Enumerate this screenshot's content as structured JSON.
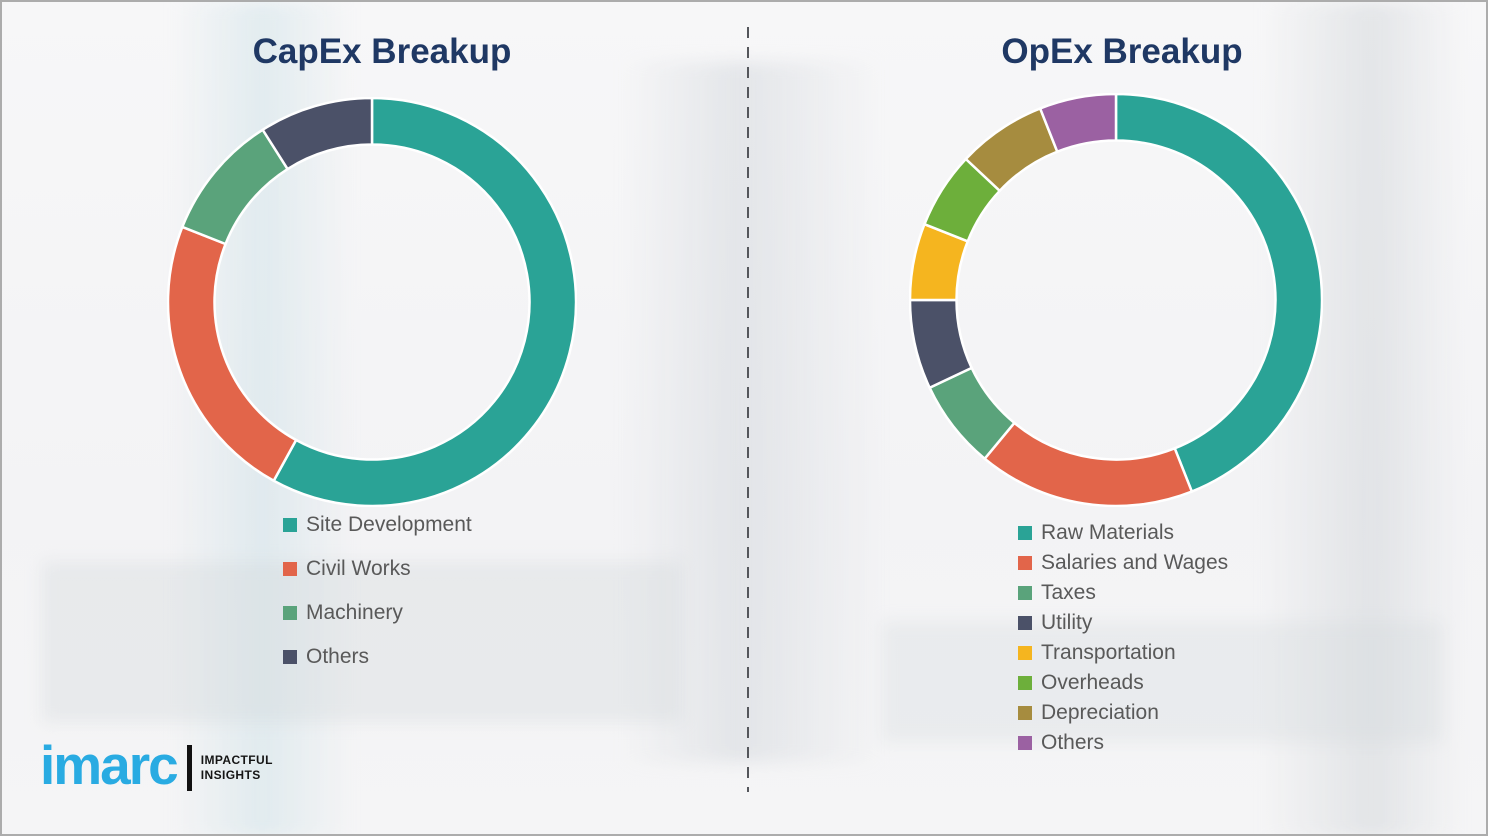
{
  "page": {
    "background_color": "#f4f4f6",
    "border_color": "#acacac",
    "divider_color": "#54565b",
    "title_color": "#1f3864",
    "legend_text_color": "#595959"
  },
  "chart_data": [
    {
      "type": "pie",
      "donut": true,
      "title": "CapEx Breakup",
      "labels": [
        "Site Development",
        "Civil Works",
        "Machinery",
        "Others"
      ],
      "values": [
        58,
        23,
        10,
        9
      ],
      "colors": [
        "#2aa396",
        "#e2654a",
        "#5aa37b",
        "#4b5168"
      ],
      "start_angle_deg": 0,
      "direction": "clockwise",
      "legend_position": "below-left"
    },
    {
      "type": "pie",
      "donut": true,
      "title": "OpEx Breakup",
      "labels": [
        "Raw Materials",
        "Salaries and Wages",
        "Taxes",
        "Utility",
        "Transportation",
        "Overheads",
        "Depreciation",
        "Others"
      ],
      "values": [
        44,
        17,
        7,
        7,
        6,
        6,
        7,
        6
      ],
      "colors": [
        "#2aa396",
        "#e2654a",
        "#5aa37b",
        "#4b5168",
        "#f5b51f",
        "#6daf3b",
        "#a68c3f",
        "#9b61a2"
      ],
      "start_angle_deg": 0,
      "direction": "clockwise",
      "legend_position": "below-left"
    }
  ],
  "logo": {
    "brand": "imarc",
    "brand_color": "#29abe2",
    "tagline_line1": "IMPACTFUL",
    "tagline_line2": "INSIGHTS"
  }
}
